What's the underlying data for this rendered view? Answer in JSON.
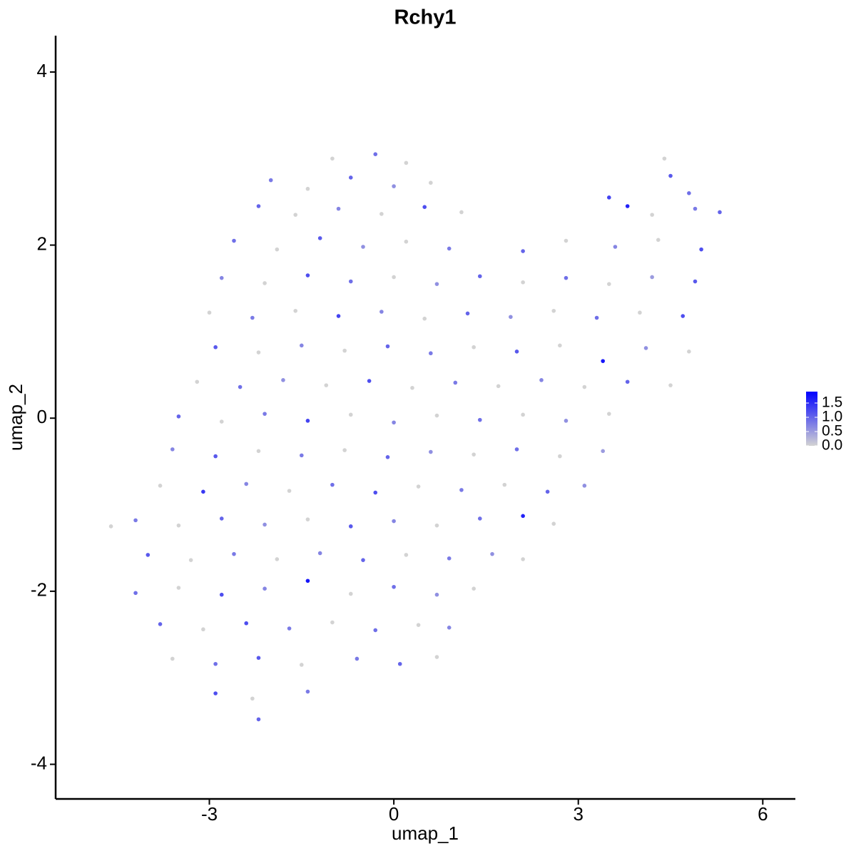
{
  "chart_data": {
    "type": "scatter",
    "title": "Rchy1",
    "xlabel": "umap_1",
    "ylabel": "umap_2",
    "xlim": [
      -5.5,
      6.53
    ],
    "ylim": [
      -4.4,
      4.42
    ],
    "xticks": [
      -3,
      0,
      3,
      6
    ],
    "yticks": [
      -4,
      -2,
      0,
      2,
      4
    ],
    "colorbar": {
      "lim": [
        0,
        1.9
      ],
      "colors": [
        "#d3d3d3",
        "#0000ff"
      ],
      "ticks": [
        {
          "value": 0,
          "label": "0.0"
        },
        {
          "value": 0.5,
          "label": "0.5"
        },
        {
          "value": 1,
          "label": "1.0"
        },
        {
          "value": 1.5,
          "label": "1.5"
        }
      ]
    },
    "x": [
      -1.0,
      -0.3,
      0.2,
      4.4,
      -2.0,
      -1.4,
      -0.7,
      0.0,
      0.6,
      4.5,
      4.8,
      -2.2,
      -1.6,
      -0.9,
      -0.2,
      0.5,
      1.1,
      3.5,
      3.8,
      4.2,
      4.9,
      5.3,
      -2.6,
      -1.9,
      -1.2,
      -0.5,
      0.2,
      0.9,
      2.1,
      2.8,
      3.6,
      4.3,
      5.0,
      -2.8,
      -2.1,
      -1.4,
      -0.7,
      0.0,
      0.7,
      1.4,
      2.1,
      2.8,
      3.5,
      4.2,
      4.9,
      -3.0,
      -2.3,
      -1.6,
      -0.9,
      -0.2,
      0.5,
      1.2,
      1.9,
      2.6,
      3.3,
      4.0,
      4.7,
      -2.9,
      -2.2,
      -1.5,
      -0.8,
      -0.1,
      0.6,
      1.3,
      2.0,
      2.7,
      3.4,
      4.1,
      4.8,
      -3.2,
      -2.5,
      -1.8,
      -1.1,
      -0.4,
      0.3,
      1.0,
      1.7,
      2.4,
      3.1,
      3.8,
      4.5,
      -3.5,
      -2.8,
      -2.1,
      -1.4,
      -0.7,
      0.0,
      0.7,
      1.4,
      2.1,
      2.8,
      3.5,
      -3.6,
      -2.9,
      -2.2,
      -1.5,
      -0.8,
      -0.1,
      0.6,
      1.3,
      2.0,
      2.7,
      3.4,
      -3.8,
      -3.1,
      -2.4,
      -1.7,
      -1.0,
      -0.3,
      0.4,
      1.1,
      1.8,
      2.5,
      3.1,
      -4.6,
      -4.2,
      -3.5,
      -2.8,
      -2.1,
      -1.4,
      -0.7,
      0.0,
      0.7,
      1.4,
      2.1,
      2.6,
      -4.0,
      -3.3,
      -2.6,
      -1.9,
      -1.2,
      -0.5,
      0.2,
      0.9,
      1.6,
      2.1,
      -4.2,
      -3.5,
      -2.8,
      -2.1,
      -1.4,
      -0.7,
      0.0,
      0.7,
      1.3,
      -3.8,
      -3.1,
      -2.4,
      -1.7,
      -1.0,
      -0.3,
      0.4,
      0.9,
      -3.6,
      -2.9,
      -2.2,
      -1.5,
      -0.6,
      0.1,
      0.7,
      -2.9,
      -2.3,
      -1.4,
      -2.2
    ],
    "y": [
      3.0,
      3.05,
      2.95,
      3.0,
      2.75,
      2.65,
      2.78,
      2.68,
      2.72,
      2.8,
      2.6,
      2.45,
      2.35,
      2.42,
      2.36,
      2.44,
      2.38,
      2.55,
      2.45,
      2.35,
      2.42,
      2.38,
      2.05,
      1.95,
      2.08,
      1.98,
      2.04,
      1.96,
      1.93,
      2.05,
      1.98,
      2.06,
      1.95,
      1.62,
      1.56,
      1.65,
      1.58,
      1.63,
      1.55,
      1.64,
      1.57,
      1.62,
      1.55,
      1.63,
      1.58,
      1.22,
      1.16,
      1.24,
      1.18,
      1.23,
      1.15,
      1.21,
      1.17,
      1.24,
      1.16,
      1.22,
      1.18,
      0.82,
      0.76,
      0.84,
      0.78,
      0.83,
      0.75,
      0.82,
      0.77,
      0.84,
      0.66,
      0.81,
      0.77,
      0.42,
      0.36,
      0.44,
      0.38,
      0.43,
      0.35,
      0.41,
      0.37,
      0.44,
      0.36,
      0.42,
      0.38,
      0.02,
      -0.04,
      0.05,
      -0.03,
      0.04,
      -0.05,
      0.03,
      -0.02,
      0.04,
      -0.03,
      0.05,
      -0.36,
      -0.44,
      -0.38,
      -0.43,
      -0.37,
      -0.45,
      -0.39,
      -0.42,
      -0.36,
      -0.44,
      -0.38,
      -0.78,
      -0.85,
      -0.76,
      -0.84,
      -0.77,
      -0.86,
      -0.79,
      -0.83,
      -0.77,
      -0.85,
      -0.78,
      -1.25,
      -1.18,
      -1.24,
      -1.16,
      -1.23,
      -1.17,
      -1.25,
      -1.19,
      -1.24,
      -1.16,
      -1.13,
      -1.22,
      -1.58,
      -1.64,
      -1.57,
      -1.63,
      -1.56,
      -1.64,
      -1.58,
      -1.62,
      -1.57,
      -1.63,
      -2.02,
      -1.96,
      -2.04,
      -1.97,
      -1.88,
      -2.03,
      -1.95,
      -2.04,
      -1.97,
      -2.38,
      -2.44,
      -2.37,
      -2.43,
      -2.36,
      -2.45,
      -2.39,
      -2.42,
      -2.78,
      -2.84,
      -2.77,
      -2.85,
      -2.78,
      -2.84,
      -2.76,
      -3.18,
      -3.24,
      -3.16,
      -3.48
    ],
    "expression": [
      0,
      0.9,
      0,
      0,
      0.8,
      0,
      1.0,
      0.6,
      0,
      1.1,
      0.9,
      1.0,
      0,
      0.7,
      0,
      1.2,
      0,
      1.3,
      1.6,
      0,
      0.8,
      1.0,
      0.9,
      0,
      1.1,
      0.6,
      0,
      0.8,
      1.0,
      0,
      0.7,
      0,
      1.2,
      0.7,
      0,
      1.2,
      0.9,
      0,
      0.6,
      1.0,
      0,
      0.9,
      0,
      0.5,
      1.1,
      0,
      0.8,
      0,
      1.3,
      0.7,
      0,
      1.0,
      0.6,
      0,
      0.9,
      0,
      1.2,
      1.1,
      0,
      0.7,
      0,
      1.0,
      0.8,
      0,
      1.1,
      0,
      1.7,
      0.6,
      0,
      0,
      0.9,
      0.6,
      0,
      1.2,
      0,
      0.8,
      0,
      0.7,
      0,
      1.0,
      0,
      1.0,
      0,
      0.8,
      1.3,
      0,
      0.7,
      0,
      0.9,
      0,
      0.6,
      0,
      0.7,
      1.1,
      0,
      0.8,
      0,
      1.0,
      0.6,
      0,
      0.9,
      0,
      0.5,
      0,
      1.4,
      0.7,
      0,
      0.9,
      1.2,
      0,
      0.8,
      0,
      1.0,
      0.6,
      0,
      0.8,
      0,
      1.0,
      0.6,
      0,
      1.1,
      0.7,
      0,
      0.9,
      1.6,
      0,
      1.1,
      0,
      0.8,
      0,
      0.7,
      1.0,
      0,
      0.8,
      0.6,
      0,
      0.9,
      0,
      1.2,
      0.7,
      1.7,
      0,
      0.9,
      0.6,
      0,
      1.0,
      0,
      1.2,
      0.8,
      0,
      0.9,
      0,
      0.7,
      0,
      0.9,
      1.1,
      0,
      0.8,
      1.0,
      0,
      1.2,
      0,
      0.8,
      1.0
    ]
  }
}
